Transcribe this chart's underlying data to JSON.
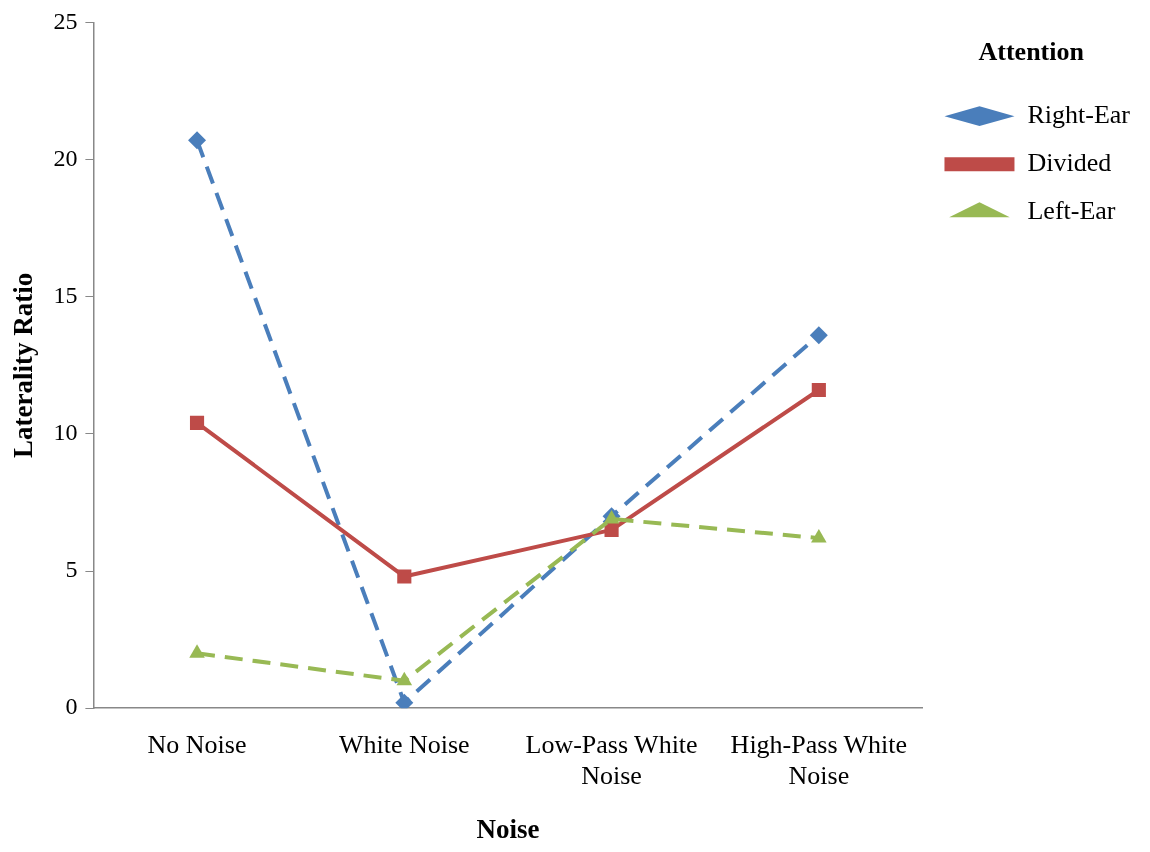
{
  "chart_data": {
    "type": "line",
    "xlabel": "Noise",
    "ylabel": "Laterality Ratio",
    "legend_title": "Attention",
    "legend": "top right",
    "grid": false,
    "categories": [
      "No Noise",
      "White Noise",
      "Low-Pass White Noise",
      "High-Pass White Noise"
    ],
    "ylim": [
      0,
      25
    ],
    "yticks": [
      0,
      5,
      10,
      15,
      20,
      25
    ],
    "series": [
      {
        "name": "Right-Ear",
        "color": "#4a7ebb",
        "marker": "diamond",
        "line_style": "dashed",
        "values": [
          20.7,
          0.2,
          7.0,
          13.6
        ]
      },
      {
        "name": "Divided",
        "color": "#be4b48",
        "marker": "square",
        "line_style": "solid",
        "values": [
          10.4,
          4.8,
          6.5,
          11.6
        ]
      },
      {
        "name": "Left-Ear",
        "color": "#98b954",
        "marker": "triangle",
        "line_style": "dashed",
        "values": [
          2.0,
          1.0,
          6.9,
          6.2
        ]
      }
    ]
  }
}
